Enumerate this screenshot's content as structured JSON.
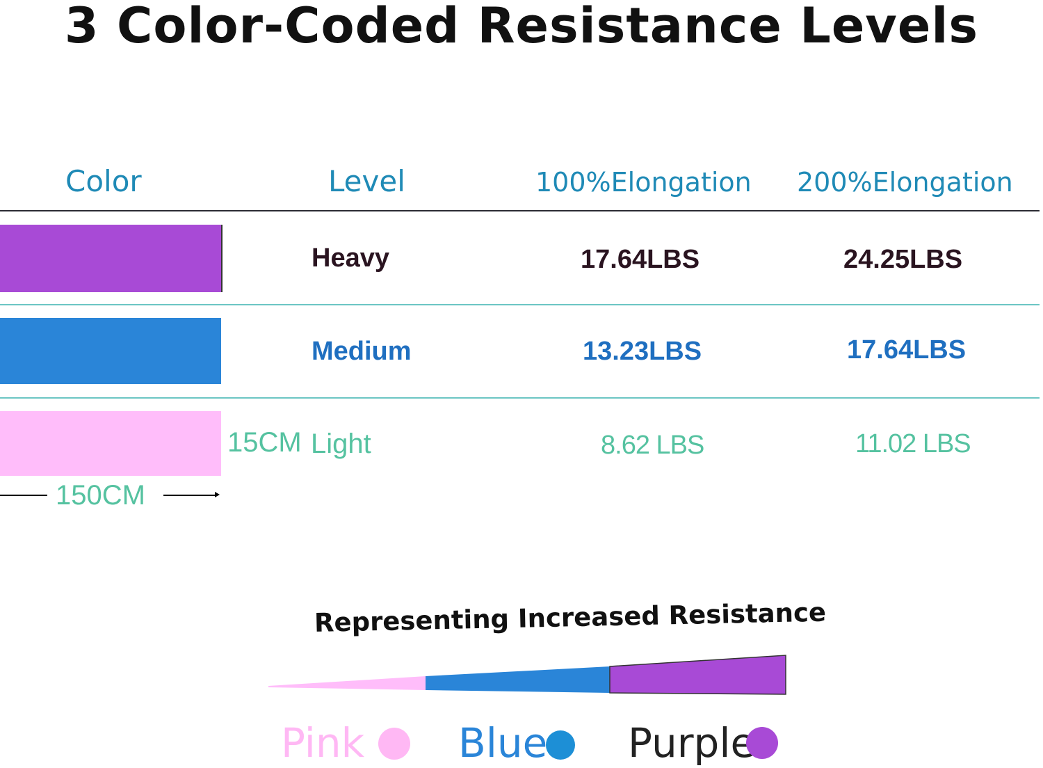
{
  "title": "3 Color-Coded Resistance Levels",
  "table": {
    "headers": {
      "color": "Color",
      "level": "Level",
      "elong100": "100%Elongation",
      "elong200": "200%Elongation"
    },
    "rows": [
      {
        "swatch_color": "#a84ad6",
        "level": "Heavy",
        "elong100": "17.64LBS",
        "elong200": "24.25LBS",
        "text_color": "#2a1420"
      },
      {
        "swatch_color": "#2a85d8",
        "level": "Medium",
        "elong100": "13.23LBS",
        "elong200": "17.64LBS",
        "text_color": "#1f6fc0"
      },
      {
        "swatch_color": "#ffbdfa",
        "level": "Light",
        "elong100": "8.62 LBS",
        "elong200": "11.02 LBS",
        "text_color": "#55c2a0"
      }
    ]
  },
  "dimensions": {
    "height_label": "15CM",
    "length_label": "150CM"
  },
  "resistance": {
    "caption": "Representing Increased Resistance",
    "legend": [
      {
        "label": "Pink",
        "color": "#ffb8f4",
        "label_color": "#ffb8f4"
      },
      {
        "label": "Blue",
        "color": "#1d8fd6",
        "label_color": "#2a85d8"
      },
      {
        "label": "Purple",
        "color": "#a84ad6",
        "label_color": "#222222"
      }
    ]
  },
  "colors": {
    "header_text": "#1f8ab6",
    "rule_dark": "#2b2b33",
    "rule_teal": "#6cc6c4"
  }
}
